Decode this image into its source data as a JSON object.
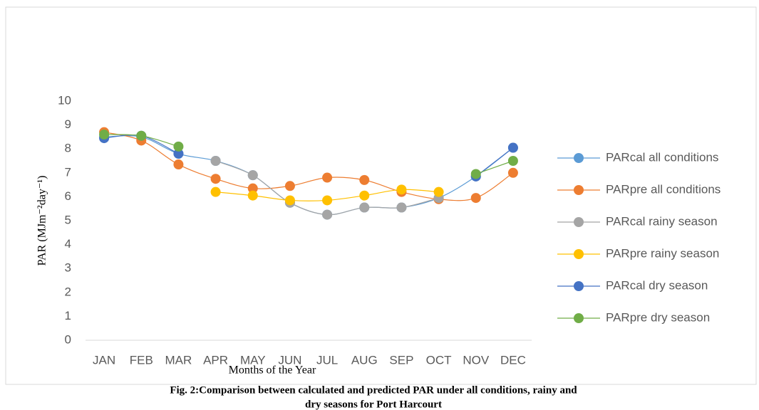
{
  "chart_data": {
    "type": "line",
    "categories": [
      "JAN",
      "FEB",
      "MAR",
      "APR",
      "MAY",
      "JUN",
      "JUL",
      "AUG",
      "SEP",
      "OCT",
      "NOV",
      "DEC"
    ],
    "ylabel": "PAR (MJm⁻²day⁻¹)",
    "xlabel": "Months of the Year",
    "caption": [
      "Fig. 2:Comparison between calculated and predicted PAR under all conditions, rainy and",
      "dry seasons for Port Harcourt"
    ],
    "ylim": [
      0,
      10
    ],
    "yticks": [
      0,
      1,
      2,
      3,
      4,
      5,
      6,
      7,
      8,
      9,
      10
    ],
    "legend": "right",
    "series": [
      {
        "name": "PARcal all conditions",
        "color": "#5b9bd5",
        "values": [
          8.5,
          8.5,
          7.8,
          7.5,
          6.9,
          5.75,
          5.25,
          5.55,
          5.55,
          5.95,
          6.85,
          8.05
        ]
      },
      {
        "name": "PARpre all conditions",
        "color": "#ed7d31",
        "values": [
          8.7,
          8.35,
          7.35,
          6.75,
          6.35,
          6.45,
          6.8,
          6.7,
          6.2,
          5.9,
          5.95,
          7.0
        ]
      },
      {
        "name": "PARcal rainy season",
        "color": "#a5a5a5",
        "values": [
          null,
          null,
          null,
          7.5,
          6.9,
          5.75,
          5.25,
          5.55,
          5.55,
          5.95,
          null,
          null
        ]
      },
      {
        "name": "PARpre rainy season",
        "color": "#ffc000",
        "values": [
          null,
          null,
          null,
          6.2,
          6.05,
          5.85,
          5.85,
          6.05,
          6.3,
          6.2,
          null,
          null
        ]
      },
      {
        "name": "PARcal dry season",
        "color": "#4472c4",
        "values": [
          8.45,
          8.55,
          7.8,
          null,
          null,
          null,
          null,
          null,
          null,
          null,
          6.85,
          8.05
        ]
      },
      {
        "name": "PARpre dry season",
        "color": "#70ad47",
        "values": [
          8.6,
          8.55,
          8.1,
          null,
          null,
          null,
          null,
          null,
          null,
          null,
          6.95,
          7.5
        ]
      }
    ]
  }
}
